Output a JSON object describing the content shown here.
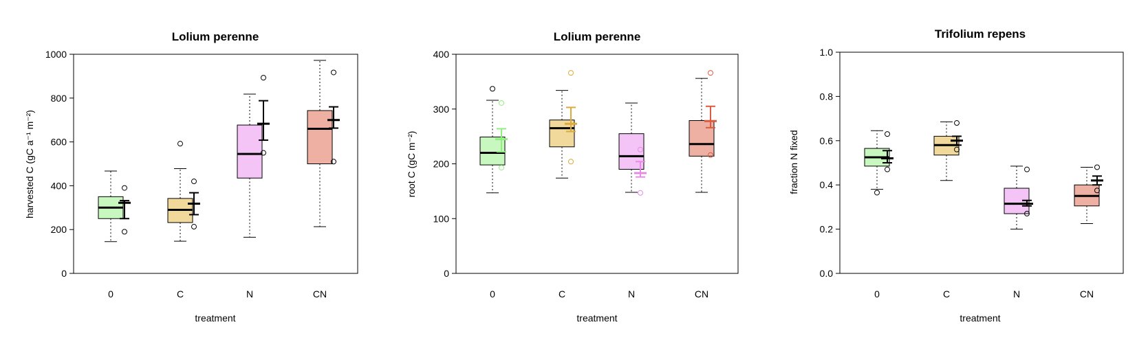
{
  "chart_data": [
    {
      "type": "box",
      "title": "Lolium perenne",
      "xlabel": "treatment",
      "ylabel": "harvested C (gC a⁻¹ m⁻²)",
      "ylim": [
        0,
        1000
      ],
      "yticks": [
        0,
        200,
        400,
        600,
        800,
        1000
      ],
      "categories": [
        "0",
        "C",
        "N",
        "CN"
      ],
      "box_colors": [
        "#c8f7c0",
        "#f1d99c",
        "#f4c4f7",
        "#efb0a4"
      ],
      "mean_colors": [
        "#000000",
        "#000000",
        "#000000",
        "#000000"
      ],
      "boxes": [
        {
          "whisker_low": 145,
          "q1": 250,
          "median": 300,
          "q3": 350,
          "whisker_high": 467,
          "outliers": []
        },
        {
          "whisker_low": 147,
          "q1": 232,
          "median": 290,
          "q3": 342,
          "whisker_high": 478,
          "outliers": [
            592
          ]
        },
        {
          "whisker_low": 165,
          "q1": 435,
          "median": 545,
          "q3": 677,
          "whisker_high": 818,
          "outliers": []
        },
        {
          "whisker_low": 213,
          "q1": 500,
          "median": 660,
          "q3": 743,
          "whisker_high": 972,
          "outliers": []
        }
      ],
      "means": [
        {
          "mean": 322,
          "low": 250,
          "high": 332,
          "min": 190,
          "max": 390
        },
        {
          "mean": 318,
          "low": 268,
          "high": 368,
          "min": 213,
          "max": 420
        },
        {
          "mean": 683,
          "low": 608,
          "high": 788,
          "min": 550,
          "max": 893
        },
        {
          "mean": 700,
          "low": 663,
          "high": 760,
          "min": 510,
          "max": 917
        }
      ]
    },
    {
      "type": "box",
      "title": "Lolium perenne",
      "xlabel": "treatment",
      "ylabel": "root C (gC m⁻²)",
      "ylim": [
        0,
        400
      ],
      "yticks": [
        0,
        100,
        200,
        300,
        400
      ],
      "categories": [
        "0",
        "C",
        "N",
        "CN"
      ],
      "box_colors": [
        "#c8f7c0",
        "#f1d99c",
        "#f4c4f7",
        "#efb0a4"
      ],
      "mean_colors": [
        "#8fef7e",
        "#dea93d",
        "#e68ae6",
        "#dc5a3e"
      ],
      "boxes": [
        {
          "whisker_low": 147,
          "q1": 198,
          "median": 220,
          "q3": 249,
          "whisker_high": 316,
          "outliers": [
            337
          ]
        },
        {
          "whisker_low": 174,
          "q1": 231,
          "median": 265,
          "q3": 280,
          "whisker_high": 334,
          "outliers": []
        },
        {
          "whisker_low": 148,
          "q1": 190,
          "median": 214,
          "q3": 255,
          "whisker_high": 311,
          "outliers": []
        },
        {
          "whisker_low": 148,
          "q1": 214,
          "median": 236,
          "q3": 279,
          "whisker_high": 356,
          "outliers": []
        }
      ],
      "means": [
        {
          "mean": 245,
          "low": 222,
          "high": 264,
          "min": 193,
          "max": 311
        },
        {
          "mean": 273,
          "low": 259,
          "high": 303,
          "min": 204,
          "max": 366
        },
        {
          "mean": 183,
          "low": 176,
          "high": 204,
          "min": 147,
          "max": 226
        },
        {
          "mean": 278,
          "low": 266,
          "high": 305,
          "min": 216,
          "max": 366
        }
      ]
    },
    {
      "type": "box",
      "title": "Trifolium repens",
      "xlabel": "treatment",
      "ylabel": "fraction N fixed",
      "ylim": [
        0,
        1
      ],
      "yticks": [
        "0.0",
        "0.2",
        "0.4",
        "0.6",
        "0.8",
        "1.0"
      ],
      "categories": [
        "0",
        "C",
        "N",
        "CN"
      ],
      "box_colors": [
        "#c8f7c0",
        "#f1d99c",
        "#f4c4f7",
        "#efb0a4"
      ],
      "mean_colors": [
        "#000000",
        "#000000",
        "#000000",
        "#000000"
      ],
      "boxes": [
        {
          "whisker_low": 0.38,
          "q1": 0.485,
          "median": 0.525,
          "q3": 0.565,
          "whisker_high": 0.645,
          "outliers": [
            0.365
          ]
        },
        {
          "whisker_low": 0.42,
          "q1": 0.535,
          "median": 0.58,
          "q3": 0.62,
          "whisker_high": 0.685,
          "outliers": []
        },
        {
          "whisker_low": 0.2,
          "q1": 0.27,
          "median": 0.315,
          "q3": 0.385,
          "whisker_high": 0.485,
          "outliers": []
        },
        {
          "whisker_low": 0.225,
          "q1": 0.305,
          "median": 0.35,
          "q3": 0.4,
          "whisker_high": 0.48,
          "outliers": []
        }
      ],
      "means": [
        {
          "mean": 0.52,
          "low": 0.5,
          "high": 0.555,
          "min": 0.47,
          "max": 0.63
        },
        {
          "mean": 0.6,
          "low": 0.58,
          "high": 0.62,
          "min": 0.56,
          "max": 0.68
        },
        {
          "mean": 0.315,
          "low": 0.305,
          "high": 0.33,
          "min": 0.27,
          "max": 0.47
        },
        {
          "mean": 0.42,
          "low": 0.4,
          "high": 0.44,
          "min": 0.375,
          "max": 0.48
        }
      ]
    }
  ]
}
